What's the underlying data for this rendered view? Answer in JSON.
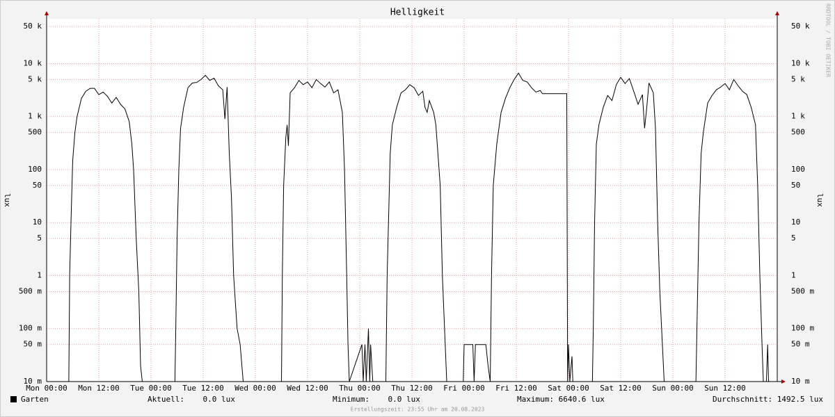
{
  "chart_data": {
    "type": "line",
    "title": "Helligkeit",
    "ylabel": "lux",
    "log_scale": true,
    "grid": true,
    "watermark": "RRDTOOL / TOBI OETIKER",
    "footer": "Erstellungszeit: 23:55 Uhr am 20.08.2023",
    "xlim": [
      0,
      168
    ],
    "ylim": [
      0.01,
      70000
    ],
    "xticks": [
      {
        "value": 0,
        "label": "Mon 00:00"
      },
      {
        "value": 12,
        "label": "Mon 12:00"
      },
      {
        "value": 24,
        "label": "Tue 00:00"
      },
      {
        "value": 36,
        "label": "Tue 12:00"
      },
      {
        "value": 48,
        "label": "Wed 00:00"
      },
      {
        "value": 60,
        "label": "Wed 12:00"
      },
      {
        "value": 72,
        "label": "Thu 00:00"
      },
      {
        "value": 84,
        "label": "Thu 12:00"
      },
      {
        "value": 96,
        "label": "Fri 00:00"
      },
      {
        "value": 108,
        "label": "Fri 12:00"
      },
      {
        "value": 120,
        "label": "Sat 00:00"
      },
      {
        "value": 132,
        "label": "Sat 12:00"
      },
      {
        "value": 144,
        "label": "Sun 00:00"
      },
      {
        "value": 156,
        "label": "Sun 12:00"
      }
    ],
    "yticks": [
      {
        "value": 50000,
        "label": "50 k"
      },
      {
        "value": 10000,
        "label": "10 k"
      },
      {
        "value": 5000,
        "label": "5 k"
      },
      {
        "value": 1000,
        "label": "1 k"
      },
      500,
      100,
      50,
      10,
      5,
      1,
      {
        "value": 0.5,
        "label": "500 m"
      },
      {
        "value": 0.1,
        "label": "100 m"
      },
      {
        "value": 0.05,
        "label": "50 m"
      },
      {
        "value": 0.01,
        "label": "10 m"
      }
    ],
    "stats": [
      "Aktuell:    0.0 lux",
      "Minimum:    0.0 lux",
      "Maximum: 6640.6 lux",
      "Durchschnitt: 1492.5 lux"
    ],
    "x": [
      0,
      5.1,
      5.3,
      5.6,
      6,
      6.5,
      7,
      8,
      9,
      10,
      11,
      12,
      13,
      14,
      15,
      16,
      17,
      18,
      19,
      19.6,
      20,
      20.6,
      21.2,
      21.6,
      22,
      29.5,
      29.7,
      30,
      30.4,
      30.8,
      31.5,
      32.5,
      33.5,
      34.5,
      35.5,
      36.5,
      37.5,
      38.5,
      39.5,
      40.5,
      41,
      41.5,
      42,
      42.5,
      43,
      43.8,
      44.5,
      45.2,
      54,
      54.2,
      54.5,
      55,
      55.3,
      55.6,
      56,
      57,
      58,
      59,
      60,
      61,
      62,
      63,
      64,
      65,
      66,
      67,
      68,
      68.5,
      69,
      69.3,
      69.6,
      72.5,
      72.8,
      73.2,
      73.5,
      74,
      74.3,
      74.5,
      75,
      78,
      78.3,
      78.7,
      79,
      79.5,
      80.5,
      81.5,
      82.5,
      83.5,
      84.5,
      85.5,
      86.5,
      87,
      87.5,
      88,
      89,
      89.5,
      90.5,
      91,
      91.5,
      92,
      95.8,
      96,
      98,
      98.3,
      98.6,
      101,
      101.5,
      102,
      102.3,
      102.7,
      103.5,
      104.5,
      105.5,
      106.5,
      107.5,
      108.5,
      109.5,
      110.5,
      111.5,
      112.5,
      113.5,
      114,
      119.6,
      119.8,
      120,
      120.3,
      120.8,
      121,
      125.5,
      125.7,
      126,
      126.4,
      127,
      128,
      129,
      130,
      131,
      132,
      133,
      134,
      135,
      136,
      137,
      137.5,
      138,
      138.5,
      139.5,
      140,
      140.5,
      141,
      142,
      142.3,
      149.3,
      149.6,
      150,
      150.5,
      151,
      152,
      153,
      154,
      155,
      156,
      157,
      158,
      159,
      160,
      161,
      162,
      163,
      163.5,
      164,
      164.5,
      164.8,
      165.5,
      165.8,
      166,
      168
    ],
    "series": [
      {
        "name": "Garten",
        "color": "#000000",
        "values": [
          0,
          0,
          1,
          10,
          150,
          500,
          1000,
          2200,
          3000,
          3400,
          3400,
          2600,
          2900,
          2400,
          1800,
          2300,
          1700,
          1400,
          800,
          300,
          100,
          5,
          0.5,
          0.02,
          0,
          0,
          0.1,
          5,
          100,
          600,
          1500,
          3500,
          4300,
          4400,
          5000,
          6000,
          4800,
          5300,
          3800,
          3200,
          900,
          3600,
          200,
          30,
          1,
          0.1,
          0.05,
          0,
          0,
          1,
          50,
          400,
          700,
          280,
          2800,
          3500,
          4800,
          4000,
          4500,
          3500,
          5000,
          4200,
          3600,
          4500,
          2800,
          3200,
          1200,
          100,
          1,
          0.05,
          0,
          0.05,
          0,
          0.05,
          0.01,
          0.1,
          0,
          0.05,
          0,
          0,
          1,
          20,
          200,
          700,
          1500,
          2800,
          3200,
          4000,
          3500,
          2500,
          3000,
          1500,
          1200,
          2000,
          1200,
          700,
          50,
          1,
          0.1,
          0,
          0,
          0.05,
          0.05,
          0.01,
          0.05,
          0.05,
          0.02,
          0,
          1,
          50,
          300,
          1200,
          2200,
          3500,
          5000,
          6600,
          4800,
          4500,
          3500,
          2900,
          3100,
          2700,
          2700,
          0,
          0.05,
          0,
          0.03,
          0,
          0,
          0.1,
          10,
          300,
          700,
          1500,
          2500,
          2000,
          4000,
          5500,
          4200,
          5200,
          3000,
          1700,
          2600,
          600,
          1500,
          4300,
          2800,
          600,
          10,
          0.5,
          0.01,
          0,
          0,
          0.2,
          10,
          200,
          500,
          1800,
          2500,
          3200,
          3600,
          4200,
          3200,
          5000,
          3800,
          3000,
          2600,
          1500,
          700,
          50,
          1,
          0.05,
          0,
          0,
          0.05,
          0,
          0
        ]
      }
    ]
  }
}
